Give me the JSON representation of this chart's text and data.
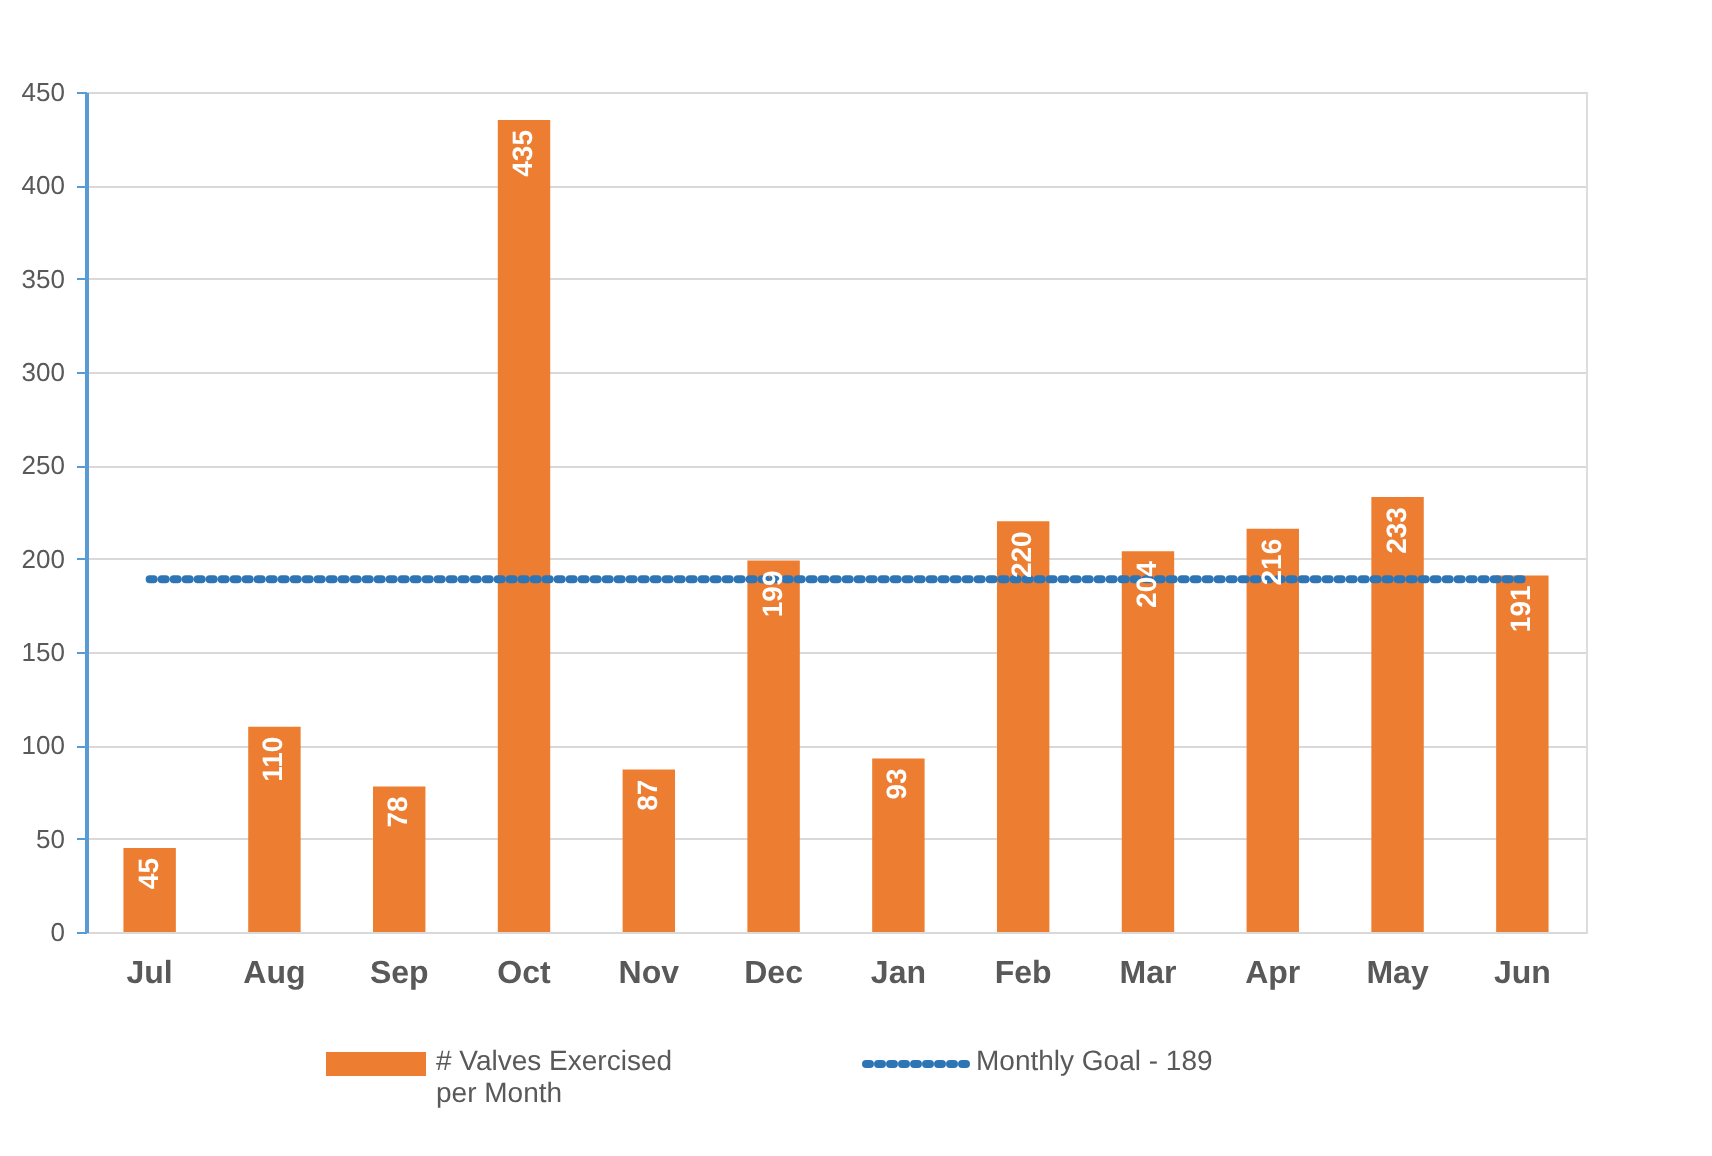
{
  "chart_data": {
    "type": "bar",
    "categories": [
      "Jul",
      "Aug",
      "Sep",
      "Oct",
      "Nov",
      "Dec",
      "Jan",
      "Feb",
      "Mar",
      "Apr",
      "May",
      "Jun"
    ],
    "series": [
      {
        "name": "# Valves Exercised\nper Month",
        "color": "#ed7d31",
        "values": [
          45,
          110,
          78,
          435,
          87,
          199,
          93,
          220,
          204,
          216,
          233,
          191
        ]
      }
    ],
    "ylim": [
      0,
      450
    ],
    "yticks": [
      0,
      50,
      100,
      150,
      200,
      250,
      300,
      350,
      400,
      450
    ],
    "grid": "y",
    "data_labels": true,
    "legend": "bottom",
    "ref_lines": [
      {
        "axis": "y",
        "value": 189,
        "label": "Monthly Goal - 189",
        "color": "#2e75b6",
        "line_style": "dotted"
      }
    ]
  }
}
